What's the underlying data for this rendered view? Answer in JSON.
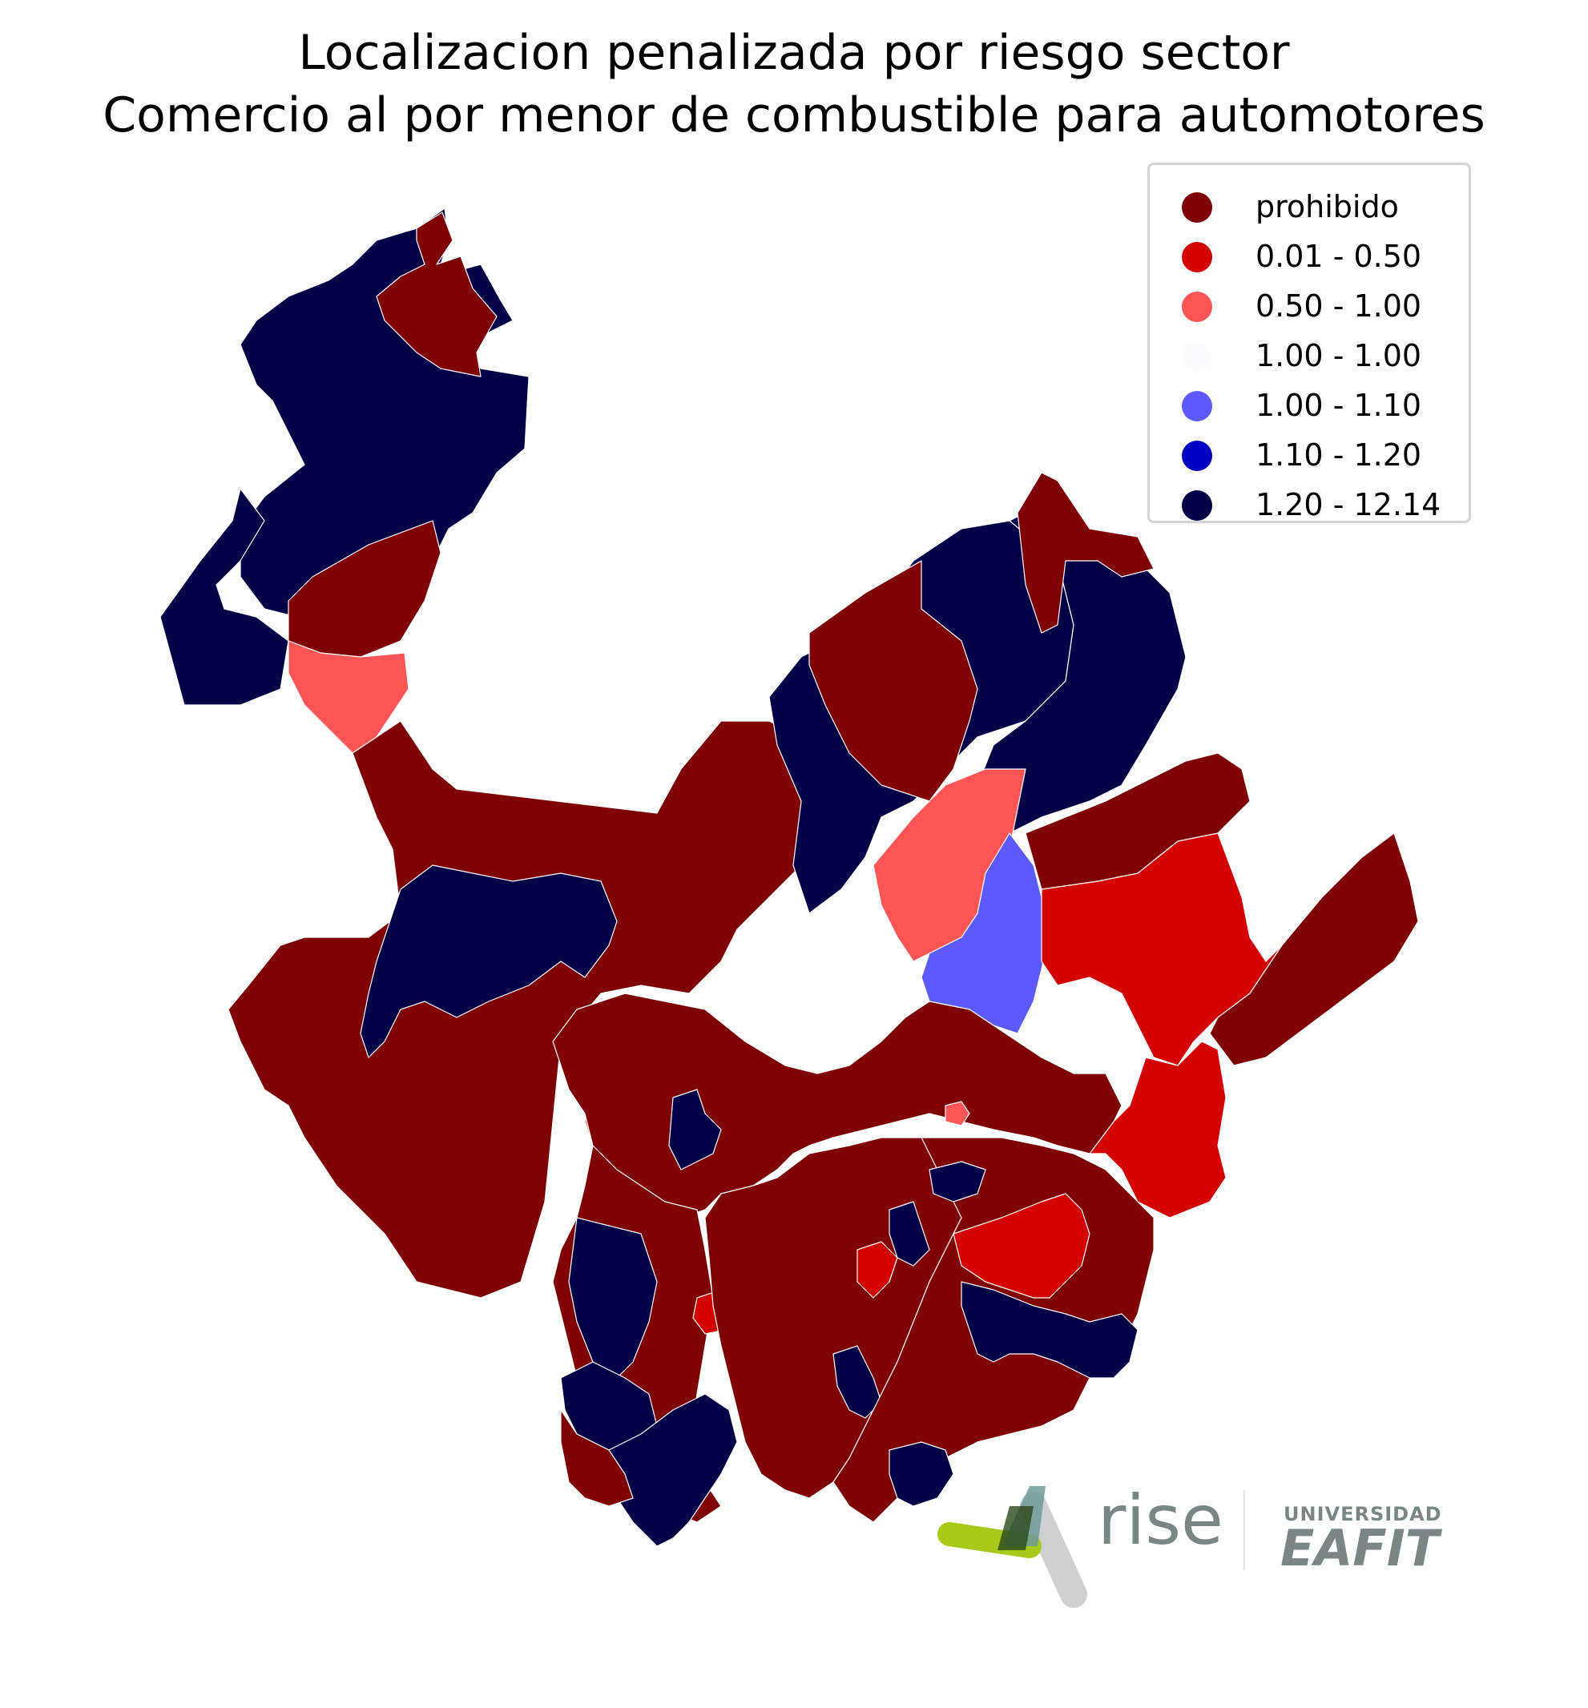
{
  "title": {
    "line1": "Localizacion penalizada por riesgo sector",
    "line2": "Comercio al por menor de combustible para automotores"
  },
  "legend": {
    "items": [
      {
        "label": "prohibido",
        "color": "#7f0000"
      },
      {
        "label": "0.01 - 0.50",
        "color": "#d40000"
      },
      {
        "label": "0.50 - 1.00",
        "color": "#ff5555"
      },
      {
        "label": "1.00 - 1.00",
        "color": "#fcfcff"
      },
      {
        "label": "1.00 - 1.10",
        "color": "#5a5aff"
      },
      {
        "label": "1.10 - 1.20",
        "color": "#0000c2"
      },
      {
        "label": "1.20 - 12.14",
        "color": "#000046"
      }
    ]
  },
  "logos": {
    "rise": "rise",
    "university_top": "UNIVERSIDAD",
    "university_main": "EAFIT"
  },
  "colors": {
    "prohibido": "#7f0000",
    "low": "#d40000",
    "mid": "#ff5555",
    "light_blue": "#5a5aff",
    "blue": "#0000c2",
    "navy": "#000046",
    "rise_green": "#a8c81a",
    "rise_teal": "#6d9a9a",
    "gray": "#7a8585"
  }
}
